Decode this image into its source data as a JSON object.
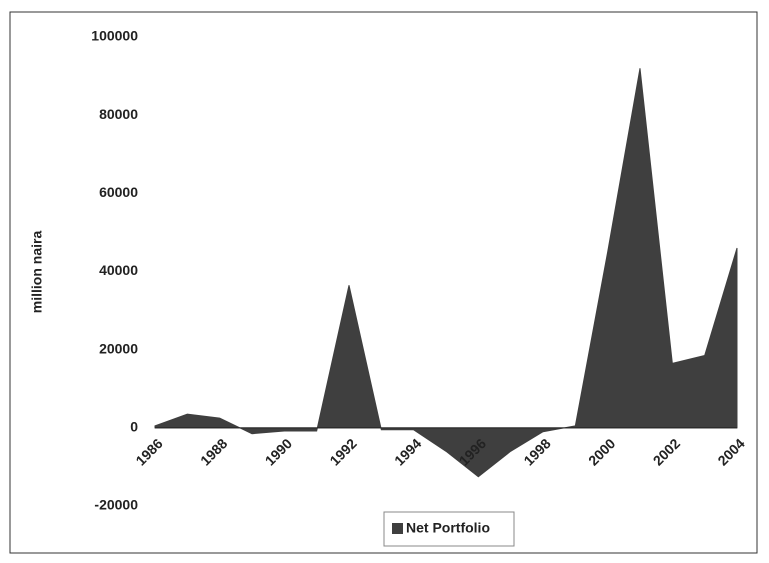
{
  "chart_data": {
    "type": "area",
    "y_label": "million naira",
    "categories": [
      "1986",
      null,
      "1988",
      null,
      "1990",
      null,
      "1992",
      null,
      "1994",
      null,
      "1996",
      null,
      "1998",
      null,
      "2000",
      null,
      "2002",
      null,
      "2004"
    ],
    "series": [
      {
        "name": "Net Portfolio",
        "color": "#3f3f3f",
        "values": [
          500,
          3500,
          2500,
          -1500,
          -800,
          -800,
          36500,
          -500,
          -500,
          -6000,
          -12500,
          -6000,
          -1000,
          500,
          45000,
          92000,
          16500,
          18500,
          46000
        ]
      }
    ],
    "ylim": [
      -20000,
      100000
    ],
    "yticks": [
      -20000,
      0,
      20000,
      40000,
      60000,
      80000,
      100000
    ],
    "legend": "bottom"
  }
}
